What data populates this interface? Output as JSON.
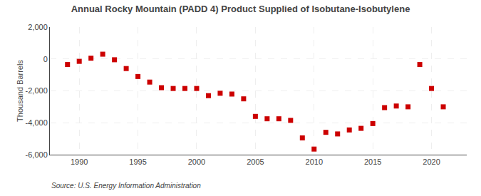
{
  "chart_data": {
    "type": "scatter",
    "title": "Annual Rocky Mountain (PADD 4) Product Supplied of Isobutane-Isobutylene",
    "ylabel": "Thousand Barrels",
    "annotations": [
      "Source: U.S. Energy Information Administration"
    ],
    "x": [
      1989,
      1990,
      1991,
      1992,
      1993,
      1994,
      1995,
      1996,
      1997,
      1998,
      1999,
      2000,
      2001,
      2002,
      2003,
      2004,
      2005,
      2006,
      2007,
      2008,
      2009,
      2010,
      2011,
      2012,
      2013,
      2014,
      2015,
      2016,
      2017,
      2018,
      2019,
      2020,
      2021
    ],
    "values": [
      -350,
      -150,
      50,
      300,
      -50,
      -600,
      -1100,
      -1450,
      -1800,
      -1850,
      -1850,
      -1850,
      -2300,
      -2150,
      -2200,
      -2500,
      -3600,
      -3750,
      -3750,
      -3850,
      -4950,
      -5650,
      -4600,
      -4700,
      -4450,
      -4350,
      -4050,
      -3050,
      -2950,
      -3000,
      -350,
      -1850,
      -3000
    ],
    "color": "#cc0000",
    "marker": "square",
    "xlim": [
      1987.5,
      2023
    ],
    "ylim": [
      -6000,
      2000
    ],
    "xticks": [
      1990,
      1995,
      2000,
      2005,
      2010,
      2015,
      2020
    ],
    "yticks": [
      {
        "value": -6000,
        "label": "-6,000"
      },
      {
        "value": -4000,
        "label": "-4,000"
      },
      {
        "value": -2000,
        "label": "-2,000"
      },
      0,
      {
        "value": 2000,
        "label": "2,000"
      }
    ],
    "grid": true
  }
}
